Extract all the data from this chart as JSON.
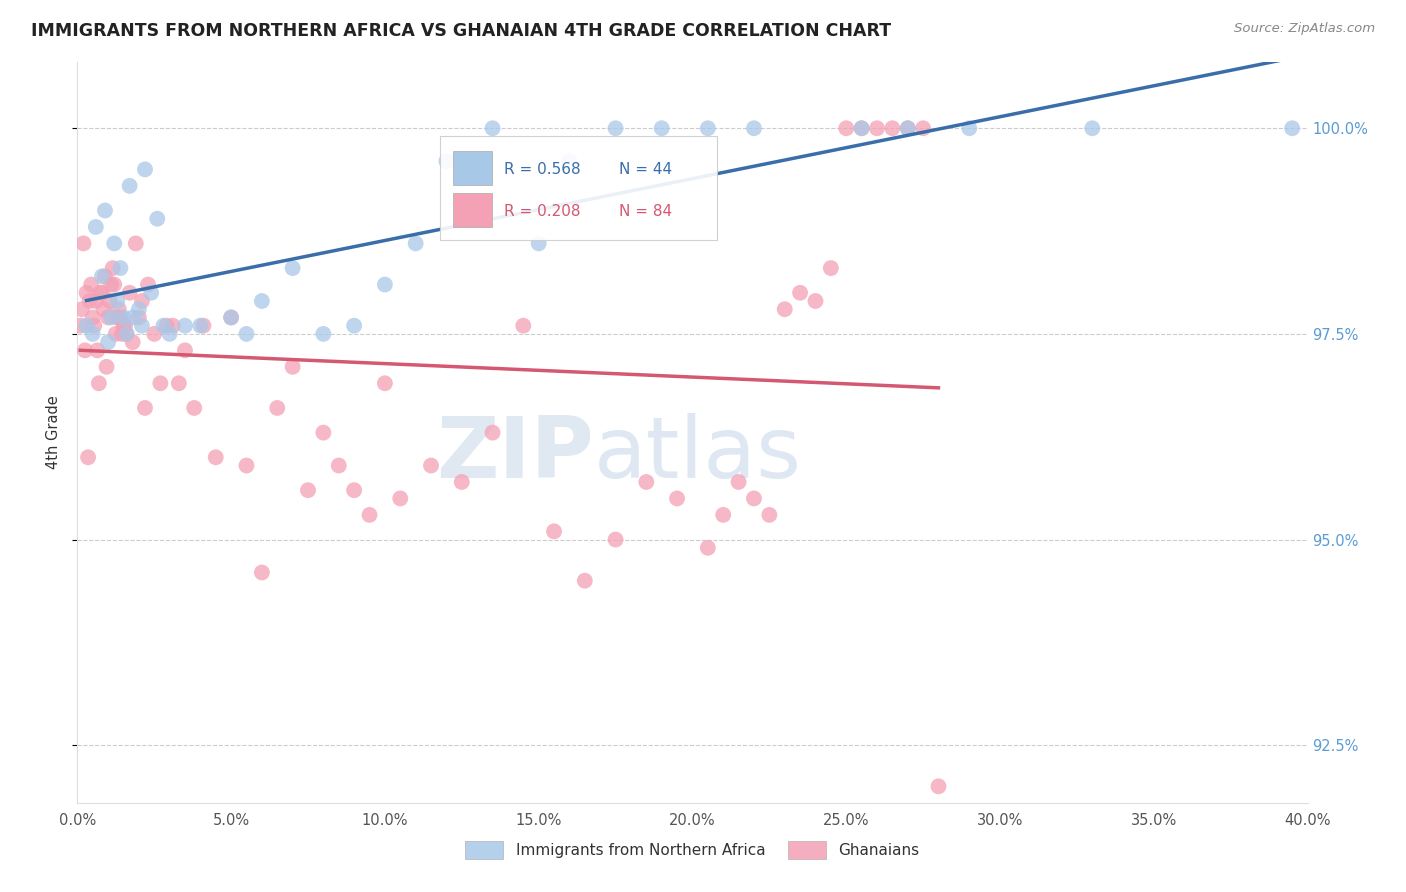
{
  "title": "IMMIGRANTS FROM NORTHERN AFRICA VS GHANAIAN 4TH GRADE CORRELATION CHART",
  "source": "Source: ZipAtlas.com",
  "ylabel": "4th Grade",
  "xlim": [
    0.0,
    40.0
  ],
  "ylim": [
    91.8,
    100.8
  ],
  "yticks": [
    92.5,
    95.0,
    97.5,
    100.0
  ],
  "blue_R": 0.568,
  "blue_N": 44,
  "pink_R": 0.208,
  "pink_N": 84,
  "blue_color": "#a8c8e8",
  "pink_color": "#f4a0b5",
  "blue_line_color": "#3a6eaa",
  "pink_line_color": "#d45870",
  "blue_label": "Immigrants from Northern Africa",
  "pink_label": "Ghanaians",
  "watermark_zip": "ZIP",
  "watermark_atlas": "atlas",
  "blue_x": [
    0.3,
    0.5,
    0.6,
    0.8,
    0.9,
    1.0,
    1.1,
    1.2,
    1.3,
    1.4,
    1.5,
    1.6,
    1.7,
    1.8,
    2.0,
    2.1,
    2.2,
    2.4,
    2.6,
    2.8,
    3.0,
    3.5,
    4.0,
    5.0,
    5.5,
    6.0,
    7.0,
    8.0,
    9.0,
    10.0,
    11.0,
    12.0,
    13.5,
    15.0,
    16.0,
    17.5,
    19.0,
    20.5,
    22.0,
    25.5,
    27.0,
    29.0,
    33.0,
    39.5
  ],
  "blue_y": [
    97.6,
    97.5,
    98.8,
    98.2,
    99.0,
    97.4,
    97.7,
    98.6,
    97.9,
    98.3,
    97.7,
    97.5,
    99.3,
    97.7,
    97.8,
    97.6,
    99.5,
    98.0,
    98.9,
    97.6,
    97.5,
    97.6,
    97.6,
    97.7,
    97.5,
    97.9,
    98.3,
    97.5,
    97.6,
    98.1,
    98.6,
    99.6,
    100.0,
    98.6,
    99.6,
    100.0,
    100.0,
    100.0,
    100.0,
    100.0,
    100.0,
    100.0,
    100.0,
    100.0
  ],
  "pink_x": [
    0.1,
    0.15,
    0.2,
    0.25,
    0.3,
    0.35,
    0.4,
    0.45,
    0.5,
    0.55,
    0.6,
    0.65,
    0.7,
    0.75,
    0.8,
    0.85,
    0.9,
    0.95,
    1.0,
    1.05,
    1.1,
    1.15,
    1.2,
    1.25,
    1.3,
    1.35,
    1.4,
    1.45,
    1.5,
    1.55,
    1.6,
    1.7,
    1.8,
    1.9,
    2.0,
    2.1,
    2.2,
    2.3,
    2.5,
    2.7,
    2.9,
    3.1,
    3.3,
    3.5,
    3.8,
    4.1,
    4.5,
    5.0,
    5.5,
    6.0,
    6.5,
    7.0,
    7.5,
    8.0,
    8.5,
    9.0,
    9.5,
    10.0,
    10.5,
    11.5,
    12.5,
    13.5,
    14.5,
    15.5,
    16.5,
    17.5,
    18.5,
    19.5,
    20.5,
    21.0,
    21.5,
    22.0,
    22.5,
    23.0,
    23.5,
    24.0,
    24.5,
    25.0,
    25.5,
    26.0,
    26.5,
    27.0,
    27.5,
    28.0
  ],
  "pink_y": [
    97.6,
    97.8,
    98.6,
    97.3,
    98.0,
    96.0,
    97.9,
    98.1,
    97.7,
    97.6,
    97.9,
    97.3,
    96.9,
    98.0,
    98.0,
    97.8,
    98.2,
    97.1,
    97.7,
    97.9,
    98.1,
    98.3,
    98.1,
    97.5,
    97.7,
    97.8,
    97.7,
    97.5,
    97.6,
    97.6,
    97.5,
    98.0,
    97.4,
    98.6,
    97.7,
    97.9,
    96.6,
    98.1,
    97.5,
    96.9,
    97.6,
    97.6,
    96.9,
    97.3,
    96.6,
    97.6,
    96.0,
    97.7,
    95.9,
    94.6,
    96.6,
    97.1,
    95.6,
    96.3,
    95.9,
    95.6,
    95.3,
    96.9,
    95.5,
    95.9,
    95.7,
    96.3,
    97.6,
    95.1,
    94.5,
    95.0,
    95.7,
    95.5,
    94.9,
    95.3,
    95.7,
    95.5,
    95.3,
    97.8,
    98.0,
    97.9,
    98.3,
    100.0,
    100.0,
    100.0,
    100.0,
    100.0,
    100.0,
    92.0
  ]
}
